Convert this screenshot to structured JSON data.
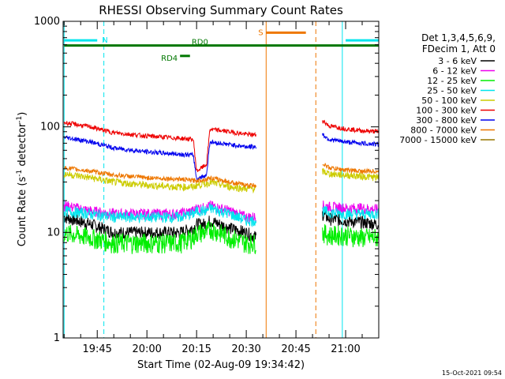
{
  "chart_data": {
    "type": "line",
    "title": "RHESSI Observing Summary Count Rates",
    "xlabel": "Start Time (02-Aug-09 19:34:42)",
    "ylabel_main": "Count Rate (s",
    "ylabel_sup1": "-1",
    "ylabel_mid": " detector",
    "ylabel_sup2": "-1",
    "ylabel_end": ")",
    "y_scale": "log",
    "ylim": [
      1,
      1000
    ],
    "y_ticks": [
      {
        "value": 1,
        "label": "1"
      },
      {
        "value": 10,
        "label": "10"
      },
      {
        "value": 100,
        "label": "100"
      },
      {
        "value": 1000,
        "label": "1000"
      }
    ],
    "xlim": [
      "19:34:42",
      "21:10:00"
    ],
    "x_ticks": [
      {
        "value": "19:45",
        "label": "19:45"
      },
      {
        "value": "20:00",
        "label": "20:00"
      },
      {
        "value": "20:15",
        "label": "20:15"
      },
      {
        "value": "20:30",
        "label": "20:30"
      },
      {
        "value": "20:45",
        "label": "20:45"
      },
      {
        "value": "21:00",
        "label": "21:00"
      }
    ],
    "legend": {
      "header_line1": "Det 1,3,4,5,6,9,",
      "header_line2": "FDecim 1, Att 0",
      "placement": "right"
    },
    "series": [
      {
        "name": "3 - 6 keV",
        "color": "#000000",
        "segments": [
          {
            "x": [
              "19:35",
              "19:43",
              "19:50",
              "20:00",
              "20:10",
              "20:14",
              "20:15",
              "20:18",
              "20:19",
              "20:25",
              "20:30",
              "20:33"
            ],
            "y": [
              14,
              12,
              10,
              10,
              10,
              11,
              12,
              12,
              13,
              11,
              10,
              9
            ]
          },
          {
            "x": [
              "20:53",
              "20:55",
              "21:00",
              "21:05",
              "21:10"
            ],
            "y": [
              15,
              13.5,
              13,
              12.5,
              12
            ]
          }
        ]
      },
      {
        "name": "6 - 12 keV",
        "color": "#ee00ee",
        "segments": [
          {
            "x": [
              "19:35",
              "19:43",
              "19:50",
              "20:00",
              "20:10",
              "20:14",
              "20:15",
              "20:18",
              "20:19",
              "20:25",
              "20:30",
              "20:33"
            ],
            "y": [
              18,
              16,
              15,
              15,
              15,
              16,
              17,
              17,
              18,
              16,
              14,
              14
            ]
          },
          {
            "x": [
              "20:53",
              "20:55",
              "21:00",
              "21:05",
              "21:10"
            ],
            "y": [
              18,
              17.5,
              17,
              17,
              16.5
            ]
          }
        ]
      },
      {
        "name": "12 - 25 keV",
        "color": "#00ee00",
        "segments": [
          {
            "x": [
              "19:35",
              "19:43",
              "19:50",
              "20:00",
              "20:10",
              "20:14",
              "20:15",
              "20:18",
              "20:19",
              "20:25",
              "20:30",
              "20:33"
            ],
            "y": [
              10,
              9,
              8,
              8,
              8,
              9,
              10,
              10,
              11,
              9,
              8,
              8
            ]
          },
          {
            "x": [
              "20:53",
              "20:55",
              "21:00",
              "21:05",
              "21:10"
            ],
            "y": [
              10,
              9.5,
              9.5,
              9,
              9
            ]
          }
        ]
      },
      {
        "name": "25 - 50 keV",
        "color": "#00e5ee",
        "segments": [
          {
            "x": [
              "19:35",
              "19:43",
              "19:50",
              "20:00",
              "20:10",
              "20:14",
              "20:15",
              "20:18",
              "20:19",
              "20:25",
              "20:30",
              "20:33"
            ],
            "y": [
              16,
              15,
              14,
              14,
              14,
              15,
              16,
              16,
              17,
              15,
              13,
              13
            ]
          },
          {
            "x": [
              "20:53",
              "20:55",
              "21:00",
              "21:05",
              "21:10"
            ],
            "y": [
              16,
              15.5,
              15,
              15,
              15
            ]
          }
        ]
      },
      {
        "name": "50 - 100 keV",
        "color": "#cccc00",
        "segments": [
          {
            "x": [
              "19:35",
              "19:43",
              "19:50",
              "20:00",
              "20:10",
              "20:14",
              "20:15",
              "20:18",
              "20:19",
              "20:25",
              "20:30",
              "20:33"
            ],
            "y": [
              36,
              33,
              30,
              28,
              27,
              27,
              28,
              29,
              30,
              27,
              26,
              26
            ]
          },
          {
            "x": [
              "20:53",
              "20:55",
              "21:00",
              "21:05",
              "21:10"
            ],
            "y": [
              38,
              36,
              35,
              34,
              33
            ]
          }
        ]
      },
      {
        "name": "100 - 300 keV",
        "color": "#ee0000",
        "segments": [
          {
            "x": [
              "19:35",
              "19:43",
              "19:50",
              "20:00",
              "20:10",
              "20:14",
              "20:15",
              "20:18",
              "20:19",
              "20:25",
              "20:30",
              "20:33"
            ],
            "y": [
              110,
              100,
              88,
              82,
              78,
              76,
              38,
              44,
              95,
              90,
              85,
              84
            ]
          },
          {
            "x": [
              "20:53",
              "20:55",
              "21:00",
              "21:05",
              "21:10"
            ],
            "y": [
              115,
              102,
              96,
              92,
              90
            ]
          }
        ]
      },
      {
        "name": "300 - 800 keV",
        "color": "#0000ee",
        "segments": [
          {
            "x": [
              "19:35",
              "19:43",
              "19:50",
              "20:00",
              "20:10",
              "20:14",
              "20:15",
              "20:18",
              "20:19",
              "20:25",
              "20:30",
              "20:33"
            ],
            "y": [
              80,
              72,
              63,
              58,
              55,
              54,
              32,
              35,
              72,
              68,
              65,
              65
            ]
          },
          {
            "x": [
              "20:53",
              "20:55",
              "21:00",
              "21:05",
              "21:10"
            ],
            "y": [
              85,
              76,
              72,
              70,
              68
            ]
          }
        ]
      },
      {
        "name": "800 - 7000 keV",
        "color": "#ee7700",
        "segments": [
          {
            "x": [
              "19:35",
              "19:43",
              "19:50",
              "20:00",
              "20:10",
              "20:14",
              "20:15",
              "20:18",
              "20:19",
              "20:25",
              "20:30",
              "20:33"
            ],
            "y": [
              41,
              38,
              35,
              33,
              32,
              31,
              31,
              32,
              33,
              30,
              28,
              28
            ]
          },
          {
            "x": [
              "20:53",
              "20:55",
              "21:00",
              "21:05",
              "21:10"
            ],
            "y": [
              45,
              41,
              39,
              38,
              38
            ]
          }
        ]
      },
      {
        "name": "7000 - 15000 keV",
        "color": "#997700",
        "segments": []
      }
    ],
    "annotations": {
      "N": {
        "label": "N",
        "color": "#00e5ee",
        "y": 660,
        "ranges": [
          [
            "19:35",
            "19:45"
          ],
          [
            "21:00",
            "21:10"
          ]
        ]
      },
      "S": {
        "label": "S",
        "color": "#ee7700",
        "y": 780,
        "range": [
          "20:36",
          "20:48"
        ]
      },
      "RD0": {
        "label": "RD0",
        "color": "#007700",
        "y": 590,
        "range": [
          "19:35",
          "21:10"
        ]
      },
      "RD4": {
        "label": "RD4",
        "color": "#007700",
        "y": 470,
        "range": [
          "20:10",
          "20:13"
        ]
      },
      "night_boundaries": [
        {
          "time": "19:35",
          "color": "#00e5ee",
          "dash": false
        },
        {
          "time": "19:47",
          "color": "#00e5ee",
          "dash": true
        },
        {
          "time": "20:36",
          "color": "#ee7700",
          "dash": false
        },
        {
          "time": "20:51",
          "color": "#ee7700",
          "dash": true
        },
        {
          "time": "20:59",
          "color": "#00e5ee",
          "dash": false
        },
        {
          "time": "21:11",
          "color": "#00e5ee",
          "dash": true
        }
      ]
    },
    "timestamp": "15-Oct-2021 09:54",
    "grid": false
  }
}
